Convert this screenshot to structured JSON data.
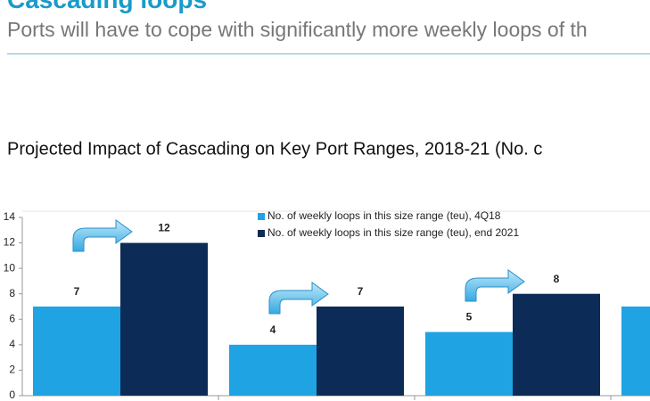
{
  "slide": {
    "title": "Cascading loops",
    "subtitle": "Ports will have to cope with significantly more weekly loops of th"
  },
  "chart_data": {
    "type": "bar",
    "title": "Projected Impact of Cascading on Key Port Ranges, 2018-21 (No. c",
    "categories": [
      null,
      null,
      null,
      null
    ],
    "series": [
      {
        "name": "No. of weekly loops in this size range (teu), 4Q18",
        "color": "#1fa3e3",
        "values": [
          7,
          4,
          5,
          7
        ]
      },
      {
        "name": "No. of weekly loops in this size range (teu), end 2021",
        "color": "#0c2b56",
        "values": [
          12,
          7,
          8,
          null
        ]
      }
    ],
    "ylim": [
      0,
      14
    ],
    "yticks": [
      0,
      2,
      4,
      6,
      8,
      10,
      12,
      14
    ],
    "grid": false
  }
}
